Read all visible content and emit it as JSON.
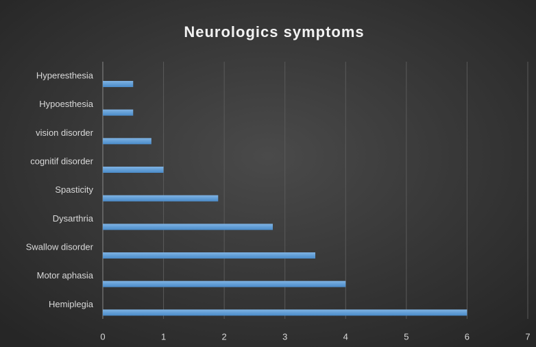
{
  "chart_data": {
    "type": "bar",
    "orientation": "horizontal",
    "title": "Neurologics symptoms",
    "categories": [
      "Hyperesthesia",
      "Hypoesthesia",
      "vision disorder",
      "cognitif disorder",
      "Spasticity",
      "Dysarthria",
      "Swallow disorder",
      "Motor aphasia",
      "Hemiplegia"
    ],
    "values": [
      0.5,
      0.5,
      0.8,
      1,
      1.9,
      2.8,
      3.5,
      4,
      6
    ],
    "color": "#5b9bd5",
    "xlim": [
      0,
      7
    ],
    "xticks": [
      0,
      1,
      2,
      3,
      4,
      5,
      6,
      7
    ],
    "grid": true
  }
}
